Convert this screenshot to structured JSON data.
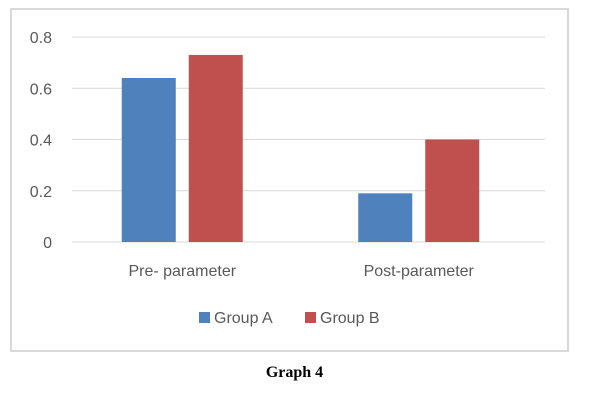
{
  "caption": "Graph 4",
  "chart_data": {
    "type": "bar",
    "title": "",
    "xlabel": "",
    "ylabel": "",
    "categories": [
      "Pre- parameter",
      "Post-parameter"
    ],
    "series": [
      {
        "name": "Group A",
        "values": [
          0.64,
          0.19
        ],
        "color": "#4f81bd"
      },
      {
        "name": "Group B",
        "values": [
          0.73,
          0.4
        ],
        "color": "#c0504d"
      }
    ],
    "ylim": [
      0,
      0.8
    ],
    "yticks": [
      "0",
      "0.2",
      "0.4",
      "0.6",
      "0.8"
    ],
    "ytick_values": [
      0,
      0.2,
      0.4,
      0.6,
      0.8
    ],
    "grid": true,
    "legend_position": "bottom"
  }
}
